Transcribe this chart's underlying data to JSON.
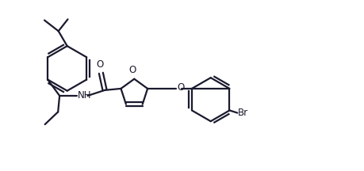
{
  "bg_color": "#ffffff",
  "line_color": "#1a1a2e",
  "line_width": 1.6,
  "label_fontsize": 8.5,
  "figsize": [
    4.6,
    2.16
  ],
  "dpi": 100,
  "xlim": [
    0,
    11
  ],
  "ylim": [
    0,
    5.5
  ]
}
